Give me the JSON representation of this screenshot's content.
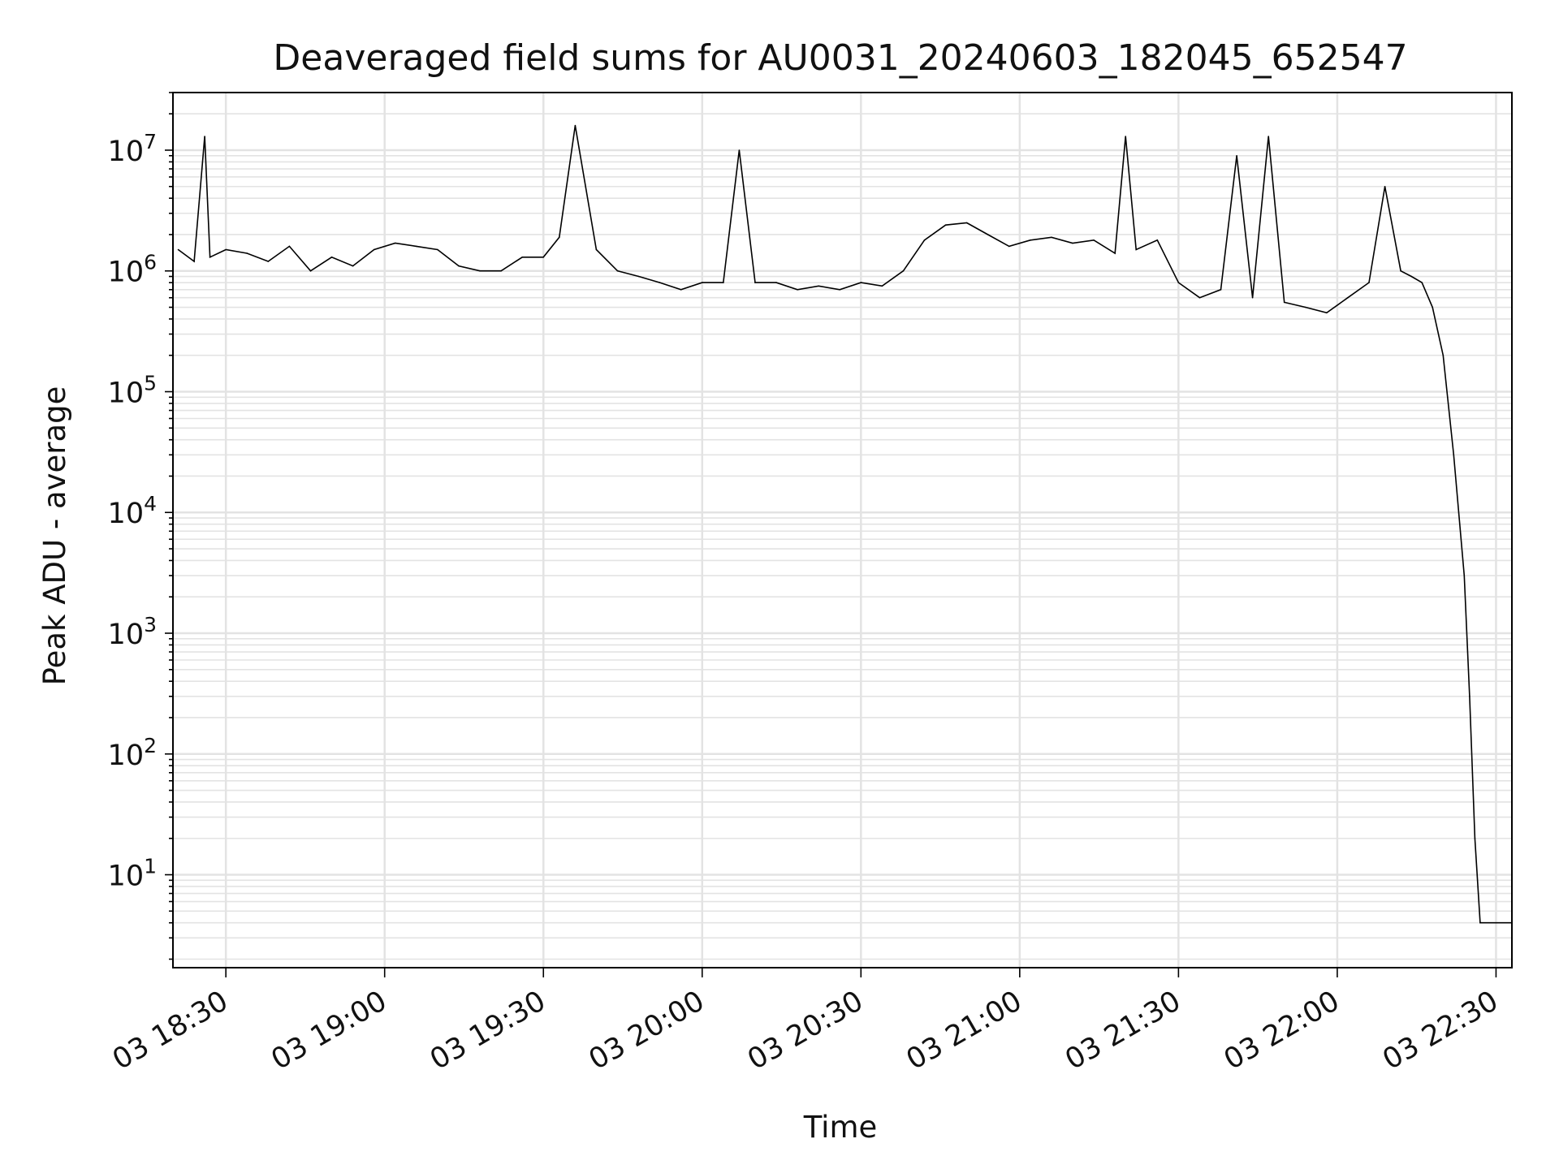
{
  "chart_data": {
    "type": "line",
    "title": "Deaveraged field sums for AU0031_20240603_182045_652547",
    "xlabel": "Time",
    "ylabel": "Peak ADU - average",
    "y_scale": "log",
    "ylim": [
      1.7,
      30000000
    ],
    "xlim": [
      "03 18:20",
      "03 22:33"
    ],
    "grid": true,
    "line_color": "#000000",
    "x_ticks": [
      "03 18:30",
      "03 19:00",
      "03 19:30",
      "03 20:00",
      "03 20:30",
      "03 21:00",
      "03 21:30",
      "03 22:00",
      "03 22:30"
    ],
    "y_ticks": [
      {
        "base": "10",
        "exp": "1",
        "value": 10
      },
      {
        "base": "10",
        "exp": "2",
        "value": 100
      },
      {
        "base": "10",
        "exp": "3",
        "value": 1000
      },
      {
        "base": "10",
        "exp": "4",
        "value": 10000
      },
      {
        "base": "10",
        "exp": "5",
        "value": 100000
      },
      {
        "base": "10",
        "exp": "6",
        "value": 1000000
      },
      {
        "base": "10",
        "exp": "7",
        "value": 10000000
      }
    ],
    "series": [
      {
        "x": [
          "03 18:21",
          "03 18:24",
          "03 18:26",
          "03 18:27",
          "03 18:30",
          "03 18:34",
          "03 18:38",
          "03 18:42",
          "03 18:46",
          "03 18:50",
          "03 18:54",
          "03 18:58",
          "03 19:02",
          "03 19:06",
          "03 19:10",
          "03 19:14",
          "03 19:18",
          "03 19:22",
          "03 19:26",
          "03 19:30",
          "03 19:33",
          "03 19:36",
          "03 19:40",
          "03 19:44",
          "03 19:48",
          "03 19:52",
          "03 19:56",
          "03 20:00",
          "03 20:04",
          "03 20:07",
          "03 20:10",
          "03 20:14",
          "03 20:18",
          "03 20:22",
          "03 20:26",
          "03 20:30",
          "03 20:34",
          "03 20:38",
          "03 20:42",
          "03 20:46",
          "03 20:50",
          "03 20:54",
          "03 20:58",
          "03 21:02",
          "03 21:06",
          "03 21:10",
          "03 21:14",
          "03 21:18",
          "03 21:20",
          "03 21:22",
          "03 21:26",
          "03 21:30",
          "03 21:34",
          "03 21:38",
          "03 21:41",
          "03 21:44",
          "03 21:47",
          "03 21:50",
          "03 21:54",
          "03 21:58",
          "03 22:02",
          "03 22:06",
          "03 22:09",
          "03 22:12",
          "03 22:14",
          "03 22:16",
          "03 22:18",
          "03 22:20",
          "03 22:22",
          "03 22:24",
          "03 22:25",
          "03 22:26",
          "03 22:27",
          "03 22:33"
        ],
        "values": [
          1500000,
          1200000,
          13000000,
          1300000,
          1500000,
          1400000,
          1200000,
          1600000,
          1000000,
          1300000,
          1100000,
          1500000,
          1700000,
          1600000,
          1500000,
          1100000,
          1000000,
          1000000,
          1300000,
          1300000,
          1900000,
          16000000,
          1500000,
          1000000,
          900000,
          800000,
          700000,
          800000,
          800000,
          10000000,
          800000,
          800000,
          700000,
          750000,
          700000,
          800000,
          750000,
          1000000,
          1800000,
          2400000,
          2500000,
          2000000,
          1600000,
          1800000,
          1900000,
          1700000,
          1800000,
          1400000,
          13000000,
          1500000,
          1800000,
          800000,
          600000,
          700000,
          9000000,
          600000,
          13000000,
          550000,
          500000,
          450000,
          600000,
          800000,
          5000000,
          1000000,
          900000,
          800000,
          500000,
          200000,
          30000,
          3000,
          300,
          20,
          4,
          4
        ]
      }
    ]
  }
}
